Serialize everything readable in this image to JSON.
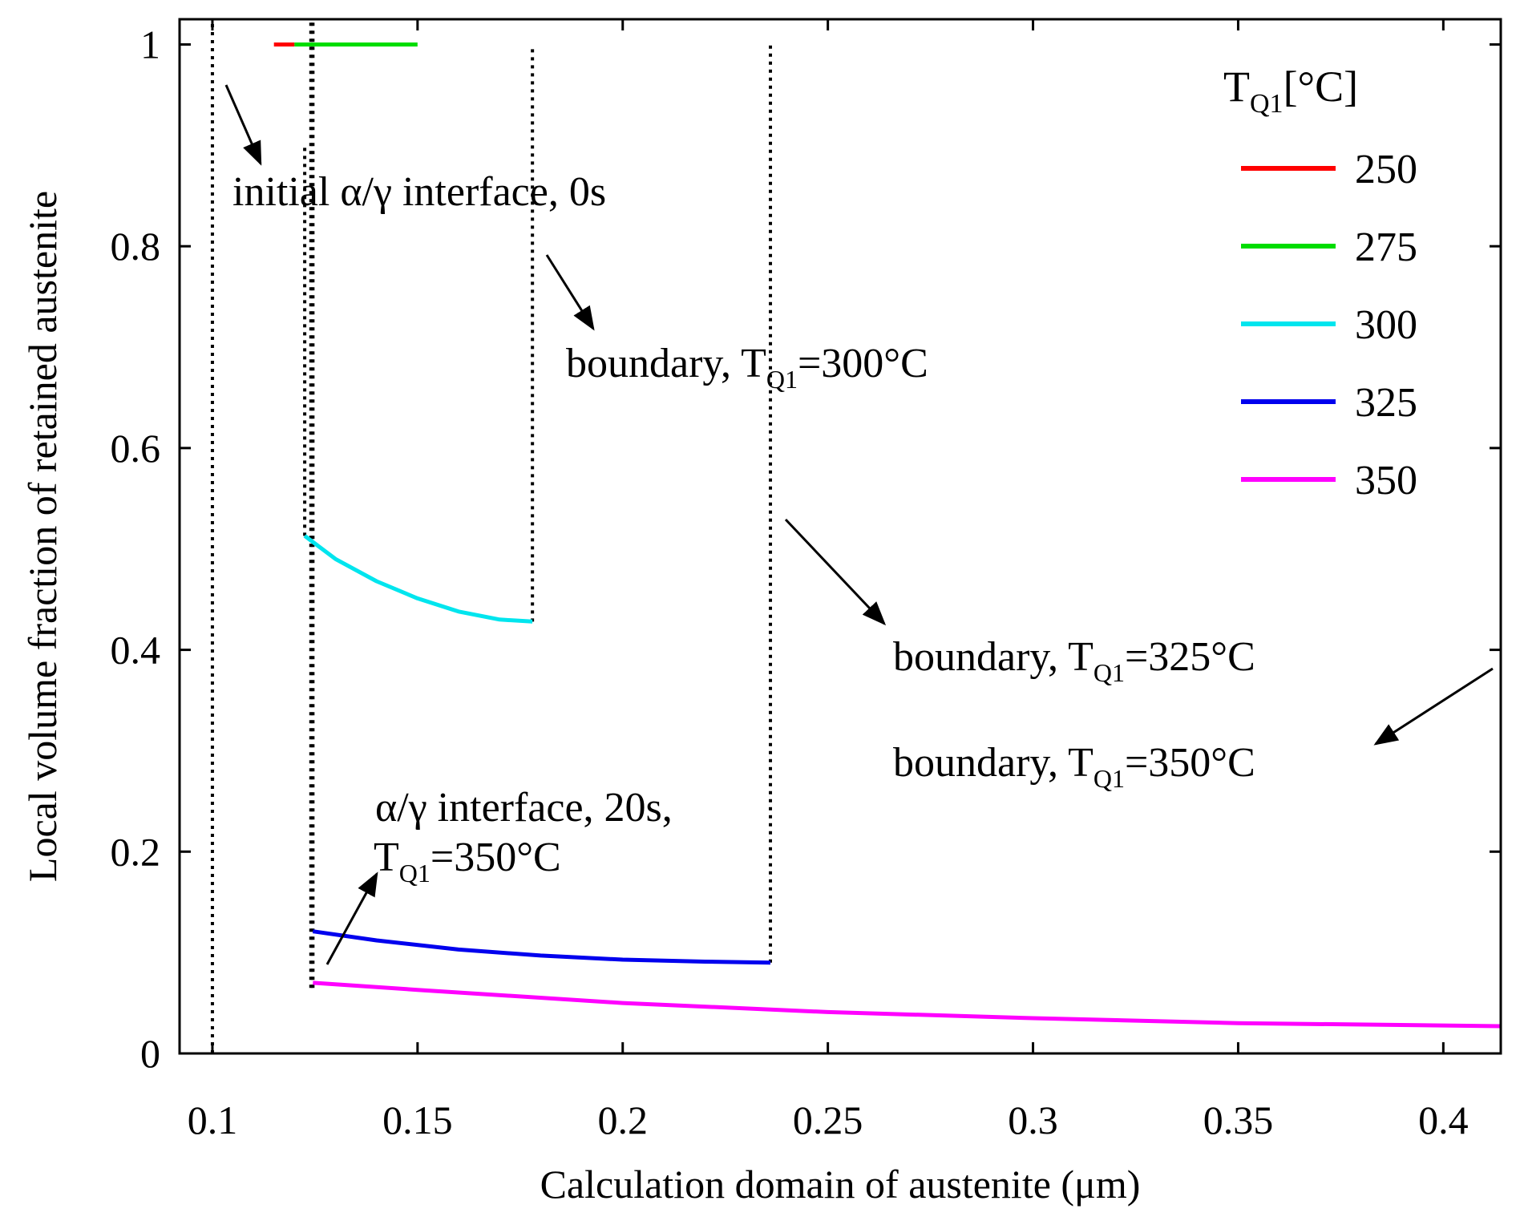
{
  "chart_data": {
    "type": "line",
    "xlabel": "Calculation domain of austenite (μm)",
    "ylabel": "Local volume fraction of retained austenite",
    "xlim": [
      0.092,
      0.414
    ],
    "ylim": [
      0,
      1.025
    ],
    "xticks": [
      0.1,
      0.15,
      0.2,
      0.25,
      0.3,
      0.35,
      0.4
    ],
    "xtick_labels": [
      "0.1",
      "0.15",
      "0.2",
      "0.25",
      "0.3",
      "0.35",
      "0.4"
    ],
    "yticks": [
      0,
      0.2,
      0.4,
      0.6,
      0.8,
      1
    ],
    "ytick_labels": [
      "0",
      "0.2",
      "0.4",
      "0.6",
      "0.8",
      "1"
    ],
    "legend": {
      "title_main": "T",
      "title_sub": "Q1",
      "title_unit": "[°C]",
      "placement": "top-right"
    },
    "series": [
      {
        "name": "250",
        "color": "#ff0000",
        "x": [
          0.115,
          0.12
        ],
        "y": [
          1.0,
          1.0
        ]
      },
      {
        "name": "275",
        "color": "#00dd00",
        "x": [
          0.12,
          0.15
        ],
        "y": [
          1.0,
          1.0
        ]
      },
      {
        "name": "300",
        "color": "#00e5ee",
        "x": [
          0.1225,
          0.13,
          0.14,
          0.15,
          0.16,
          0.17,
          0.178
        ],
        "y": [
          0.513,
          0.49,
          0.468,
          0.451,
          0.438,
          0.43,
          0.428
        ]
      },
      {
        "name": "325",
        "color": "#0000ee",
        "x": [
          0.1245,
          0.14,
          0.16,
          0.18,
          0.2,
          0.22,
          0.236
        ],
        "y": [
          0.121,
          0.112,
          0.103,
          0.097,
          0.093,
          0.091,
          0.09
        ]
      },
      {
        "name": "350",
        "color": "#ff00ff",
        "x": [
          0.1245,
          0.15,
          0.2,
          0.25,
          0.3,
          0.35,
          0.414
        ],
        "y": [
          0.07,
          0.063,
          0.05,
          0.041,
          0.035,
          0.03,
          0.027
        ]
      }
    ],
    "reference_lines": [
      {
        "label": "initial-interface",
        "x": 0.1,
        "y_range": [
          0,
          1.025
        ]
      },
      {
        "label": "interface-a",
        "x": 0.1225,
        "y_range": [
          0.513,
          0.9
        ]
      },
      {
        "label": "interface-b",
        "x": 0.124,
        "y_range": [
          0.065,
          1.025
        ]
      },
      {
        "label": "interface-c",
        "x": 0.1245,
        "y_range": [
          0.065,
          1.025
        ]
      },
      {
        "label": "boundary-300",
        "x": 0.178,
        "y_range": [
          0.428,
          1.0
        ]
      },
      {
        "label": "boundary-325",
        "x": 0.236,
        "y_range": [
          0.09,
          1.0
        ]
      }
    ],
    "annotations": [
      {
        "id": "ann-initial",
        "text": "initial α/γ interface, 0s",
        "sub": "",
        "suffix": ""
      },
      {
        "id": "ann-b300",
        "text": "boundary, T",
        "sub": "Q1",
        "suffix": "=300°C"
      },
      {
        "id": "ann-b325",
        "text": "boundary, T",
        "sub": "Q1",
        "suffix": "=325°C"
      },
      {
        "id": "ann-b350",
        "text": "boundary, T",
        "sub": "Q1",
        "suffix": "=350°C"
      },
      {
        "id": "ann-int20-line1",
        "text": "α/γ interface, 20s,",
        "sub": "",
        "suffix": ""
      },
      {
        "id": "ann-int20-line2",
        "text": "T",
        "sub": "Q1",
        "suffix": "=350°C"
      }
    ]
  }
}
